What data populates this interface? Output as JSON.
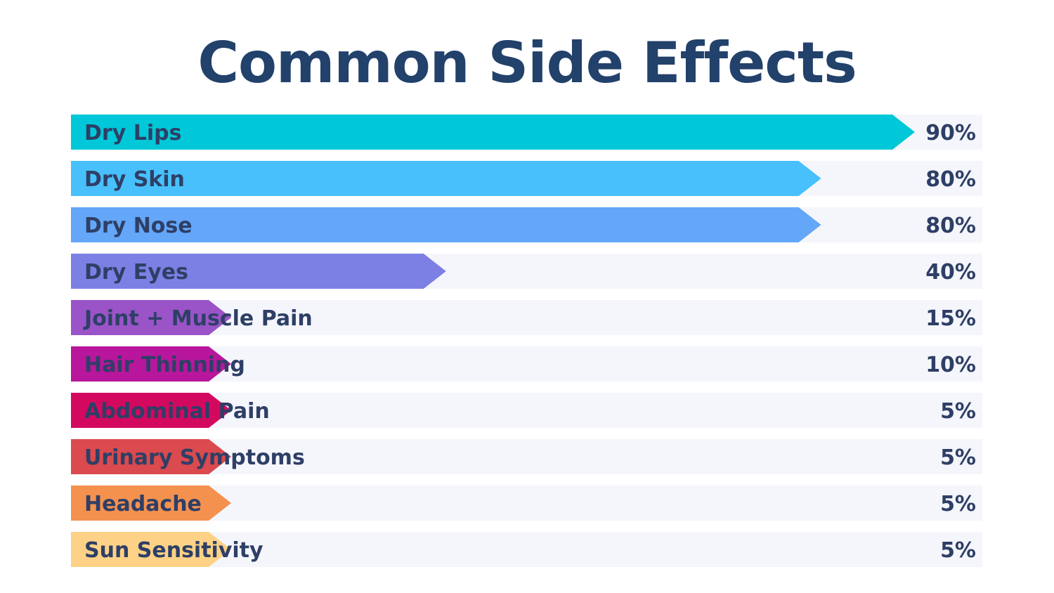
{
  "chart_data": {
    "type": "bar",
    "orientation": "horizontal",
    "title": "Common Side Effects",
    "categories": [
      "Dry Lips",
      "Dry Skin",
      "Dry Nose",
      "Dry Eyes",
      "Joint + Muscle Pain",
      "Hair Thinning",
      "Abdominal Pain",
      "Urinary Symptoms",
      "Headache",
      "Sun Sensitivity"
    ],
    "values": [
      90,
      80,
      80,
      40,
      15,
      10,
      5,
      5,
      5,
      5
    ],
    "value_labels": [
      "90%",
      "80%",
      "80%",
      "40%",
      "15%",
      "10%",
      "5%",
      "5%",
      "5%",
      "5%"
    ],
    "unit": "%",
    "xlim": [
      0,
      100
    ],
    "colors": [
      "#00c8d8",
      "#48c0fb",
      "#64a6f8",
      "#7c80e4",
      "#9a54c8",
      "#b8169c",
      "#d3095f",
      "#da4a4e",
      "#f4914f",
      "#fdd287"
    ],
    "grid": false,
    "legend": "none"
  }
}
